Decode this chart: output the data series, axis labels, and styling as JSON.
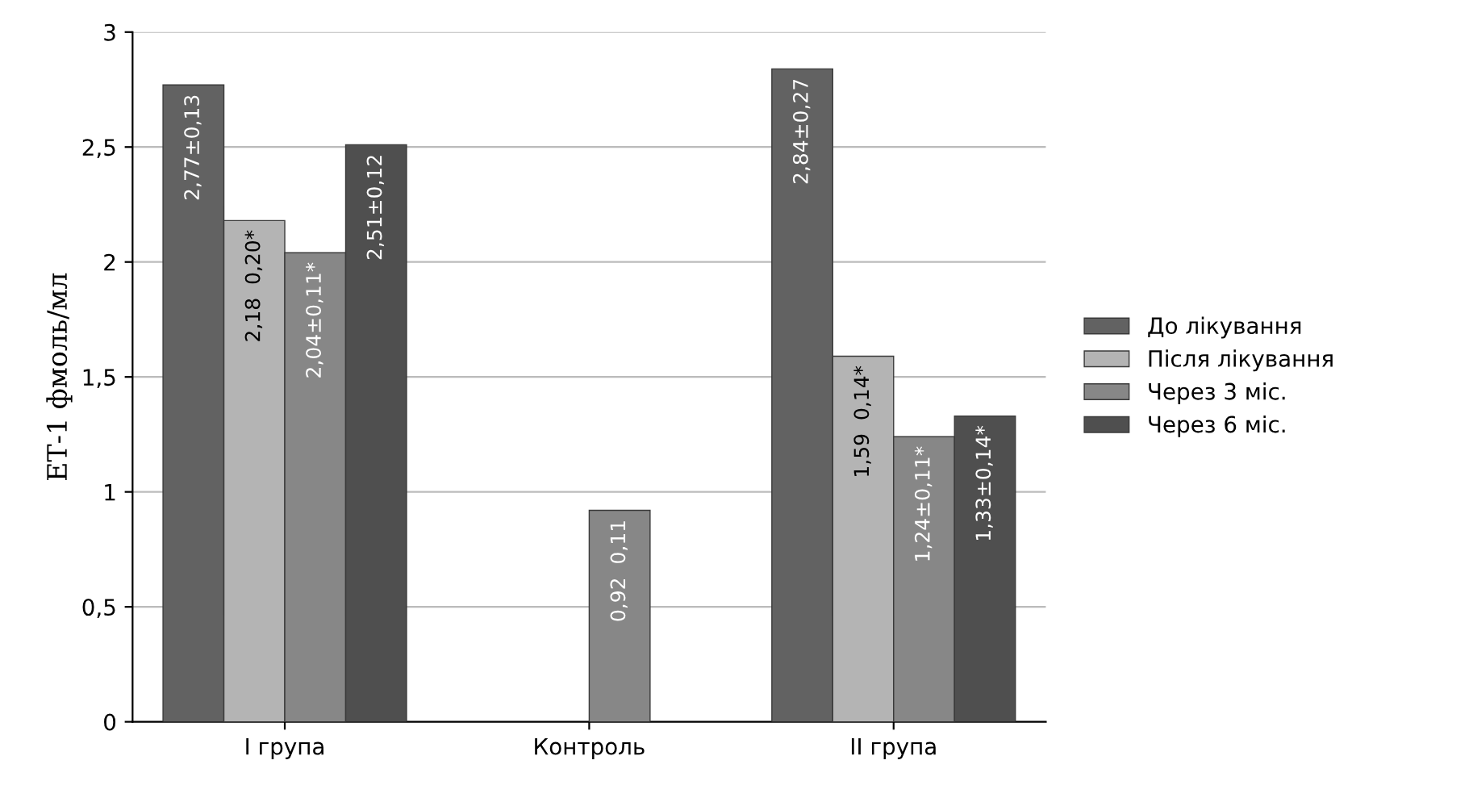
{
  "chart_data": {
    "type": "bar",
    "ylabel": "ЕТ-1 фмоль/мл",
    "categories": [
      "І група",
      "Контроль",
      "ІІ група"
    ],
    "series": [
      {
        "name": "До лікування",
        "color": "#626262",
        "values": [
          2.77,
          null,
          2.84
        ],
        "value_labels": [
          "2,77±0,13",
          null,
          "2,84±0,27"
        ]
      },
      {
        "name": "Після лікування",
        "color": "#b4b4b4",
        "values": [
          2.18,
          null,
          1.59
        ],
        "value_labels": [
          "2,18  0,20*",
          null,
          "1,59  0,14*"
        ]
      },
      {
        "name": "Через 3 міс.",
        "color": "#878787",
        "values": [
          2.04,
          0.92,
          1.24
        ],
        "value_labels": [
          "2,04±0,11*",
          "0,92  0,11",
          "1,24±0,11*"
        ]
      },
      {
        "name": "Через 6 міс.",
        "color": "#4f4f4f",
        "values": [
          2.51,
          null,
          1.33
        ],
        "value_labels": [
          "2,51±0,12",
          null,
          "1,33±0,14*"
        ]
      }
    ],
    "ylim": [
      0,
      3
    ],
    "yticks": [
      0,
      {
        "value": 0.5,
        "label": "0,5"
      },
      1,
      {
        "value": 1.5,
        "label": "1,5"
      },
      2,
      {
        "value": 2.5,
        "label": "2,5"
      },
      3
    ],
    "grid": "y",
    "legend": "right"
  }
}
